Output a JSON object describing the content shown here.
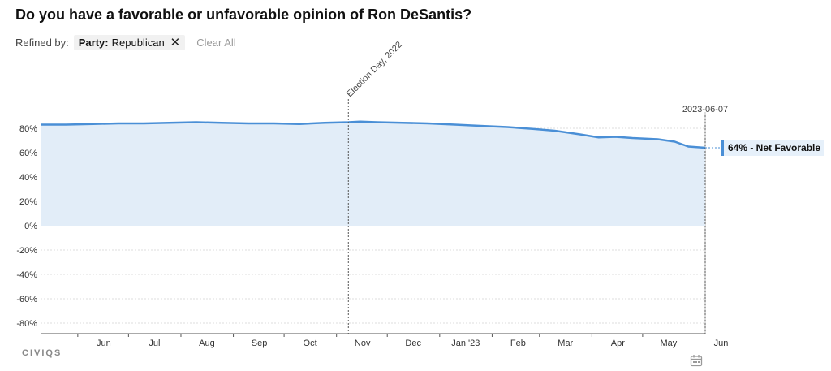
{
  "title": "Do you have a favorable or unfavorable opinion of Ron DeSantis?",
  "filters": {
    "refined_by_label": "Refined by:",
    "chip_key": "Party:",
    "chip_value": "Republican",
    "clear_all_label": "Clear All"
  },
  "logo_text": "CIVIQS",
  "colors": {
    "line": "#4a8fd6",
    "fill": "#e2edf8",
    "callout_bar": "#4a8fd6"
  },
  "chart_data": {
    "type": "area",
    "xlabel": "",
    "ylabel": "",
    "ylim": [
      -90,
      90
    ],
    "grid": true,
    "y_ticks": [
      {
        "value": 80,
        "label": "80%"
      },
      {
        "value": 60,
        "label": "60%"
      },
      {
        "value": 40,
        "label": "40%"
      },
      {
        "value": 20,
        "label": "20%"
      },
      {
        "value": 0,
        "label": "0%"
      },
      {
        "value": -20,
        "label": "-20%"
      },
      {
        "value": -40,
        "label": "-40%"
      },
      {
        "value": -60,
        "label": "-60%"
      },
      {
        "value": -80,
        "label": "-80%"
      }
    ],
    "x_range": [
      "2022-05-10",
      "2023-06-07"
    ],
    "x_ticks": [
      {
        "date": "2022-06-01",
        "label": "Jun"
      },
      {
        "date": "2022-07-01",
        "label": "Jul"
      },
      {
        "date": "2022-08-01",
        "label": "Aug"
      },
      {
        "date": "2022-09-01",
        "label": "Sep"
      },
      {
        "date": "2022-10-01",
        "label": "Oct"
      },
      {
        "date": "2022-11-01",
        "label": "Nov"
      },
      {
        "date": "2022-12-01",
        "label": "Dec"
      },
      {
        "date": "2023-01-01",
        "label": "Jan '23"
      },
      {
        "date": "2023-02-01",
        "label": "Feb"
      },
      {
        "date": "2023-03-01",
        "label": "Mar"
      },
      {
        "date": "2023-04-01",
        "label": "Apr"
      },
      {
        "date": "2023-05-01",
        "label": "May"
      },
      {
        "date": "2023-06-01",
        "label": "Jun"
      }
    ],
    "series": [
      {
        "name": "Net Favorable",
        "points": [
          [
            "2022-05-10",
            83
          ],
          [
            "2022-05-25",
            83
          ],
          [
            "2022-06-10",
            83.5
          ],
          [
            "2022-06-25",
            84
          ],
          [
            "2022-07-10",
            84
          ],
          [
            "2022-07-25",
            84.5
          ],
          [
            "2022-08-10",
            85
          ],
          [
            "2022-08-25",
            84.5
          ],
          [
            "2022-09-10",
            84
          ],
          [
            "2022-09-25",
            84
          ],
          [
            "2022-10-10",
            83.5
          ],
          [
            "2022-10-25",
            84.5
          ],
          [
            "2022-11-08",
            85
          ],
          [
            "2022-11-15",
            85.5
          ],
          [
            "2022-11-25",
            85
          ],
          [
            "2022-12-10",
            84.5
          ],
          [
            "2022-12-25",
            84
          ],
          [
            "2023-01-10",
            83
          ],
          [
            "2023-01-25",
            82
          ],
          [
            "2023-02-10",
            81
          ],
          [
            "2023-02-25",
            79.5
          ],
          [
            "2023-03-10",
            78
          ],
          [
            "2023-03-25",
            75
          ],
          [
            "2023-04-05",
            72.5
          ],
          [
            "2023-04-15",
            73
          ],
          [
            "2023-04-25",
            72
          ],
          [
            "2023-05-10",
            71
          ],
          [
            "2023-05-20",
            69
          ],
          [
            "2023-05-28",
            65
          ],
          [
            "2023-06-07",
            64
          ]
        ]
      }
    ],
    "annotations": [
      {
        "date": "2022-11-08",
        "label": "Election Day, 2022"
      },
      {
        "date": "2023-06-07",
        "label": "2023-06-07"
      }
    ],
    "callout": {
      "value": 64,
      "label": "64% - Net Favorable"
    }
  }
}
